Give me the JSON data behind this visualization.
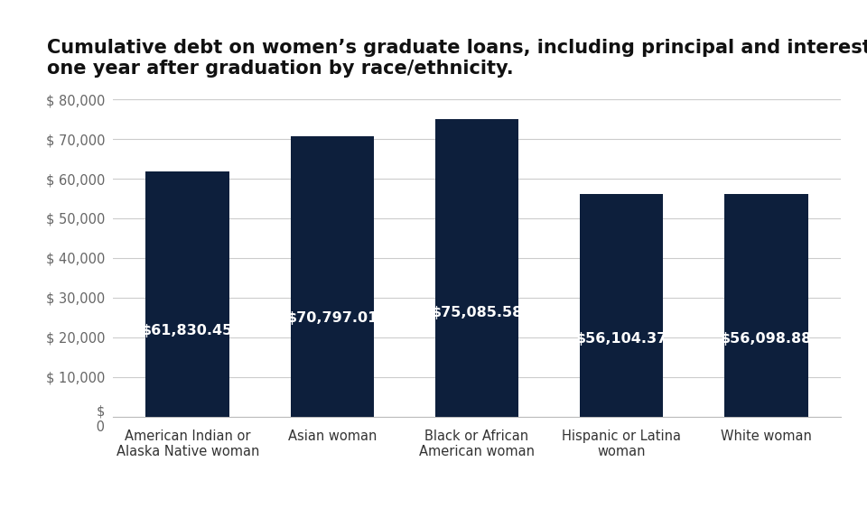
{
  "title": "Cumulative debt on women’s graduate loans, including principal and interest,\none year after graduation by race/ethnicity.",
  "categories": [
    "American Indian or\nAlaska Native woman",
    "Asian woman",
    "Black or African\nAmerican woman",
    "Hispanic or Latina\nwoman",
    "White woman"
  ],
  "values": [
    61830.45,
    70797.01,
    75085.58,
    56104.37,
    56098.88
  ],
  "bar_color": "#0d1f3c",
  "label_color": "#ffffff",
  "label_fontsize": 11.5,
  "title_fontsize": 15,
  "tick_color": "#666666",
  "xlabel_color": "#333333",
  "ylim": [
    0,
    82000
  ],
  "yticks": [
    0,
    10000,
    20000,
    30000,
    40000,
    50000,
    60000,
    70000,
    80000
  ],
  "background_color": "#ffffff",
  "grid_color": "#cccccc"
}
